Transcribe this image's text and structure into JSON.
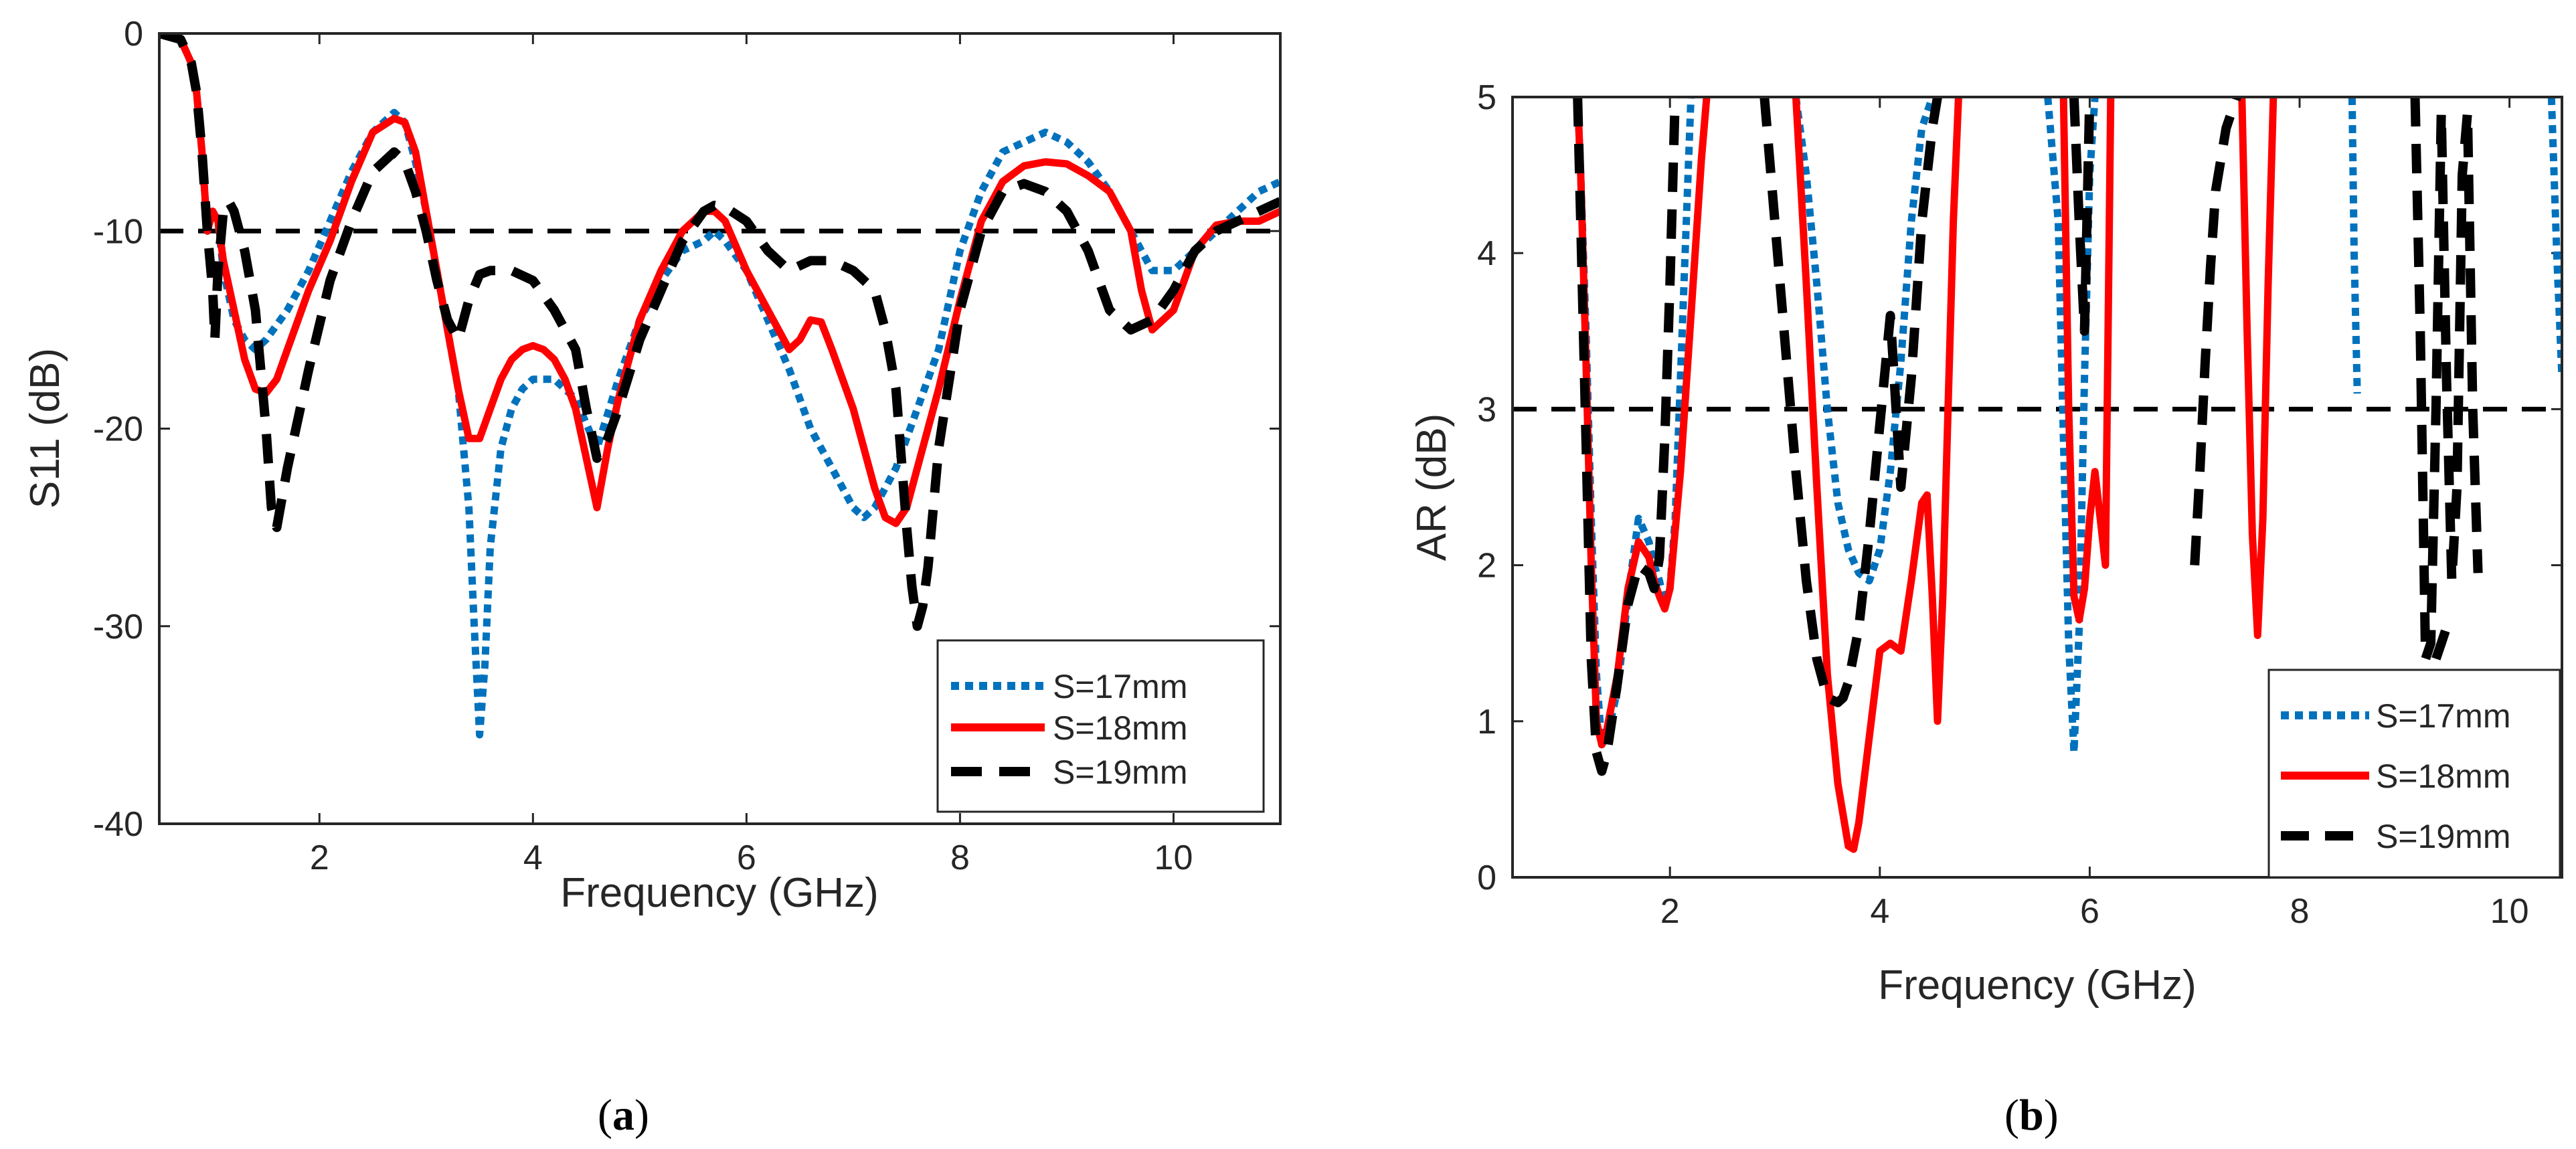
{
  "chart_data": [
    {
      "type": "line",
      "panel_label": "a",
      "xlabel": "Frequency (GHz)",
      "ylabel": "S11 (dB)",
      "xlim": [
        0.5,
        11
      ],
      "ylim": [
        -40,
        0
      ],
      "xticks": [
        2,
        4,
        6,
        8,
        10
      ],
      "xtick_labels": [
        "2",
        "4",
        "6",
        "8",
        "10"
      ],
      "yticks": [
        -40,
        -30,
        -20,
        -10,
        0
      ],
      "ytick_labels": [
        "-40",
        "-30",
        "-20",
        "-10",
        "0"
      ],
      "legend_position": "bottom-right",
      "reference_line": {
        "y": -10,
        "style": "dashed",
        "color": "#000000"
      },
      "series": [
        {
          "name": "S=17mm",
          "color": "#0072BD",
          "style": "dotted",
          "x": [
            0.5,
            0.7,
            0.8,
            0.85,
            0.9,
            0.95,
            1.0,
            1.05,
            1.1,
            1.2,
            1.3,
            1.4,
            1.5,
            1.7,
            1.9,
            2.1,
            2.3,
            2.5,
            2.7,
            2.8,
            2.9,
            3.0,
            3.1,
            3.2,
            3.3,
            3.4,
            3.45,
            3.5,
            3.55,
            3.6,
            3.7,
            3.8,
            3.9,
            4.0,
            4.2,
            4.4,
            4.6,
            4.8,
            5.0,
            5.2,
            5.4,
            5.6,
            5.7,
            5.8,
            6.0,
            6.2,
            6.4,
            6.6,
            6.8,
            7.0,
            7.1,
            7.2,
            7.4,
            7.6,
            7.8,
            8.0,
            8.2,
            8.4,
            8.6,
            8.8,
            9.0,
            9.2,
            9.4,
            9.6,
            9.8,
            10.0,
            10.2,
            10.4,
            10.6,
            10.8,
            11.0
          ],
          "y": [
            0,
            -0.3,
            -1.5,
            -3,
            -6,
            -10,
            -9,
            -9.5,
            -12,
            -14.5,
            -15.5,
            -16,
            -15.5,
            -14,
            -12,
            -9.5,
            -7,
            -5,
            -4,
            -4.5,
            -6.5,
            -9,
            -12,
            -15,
            -18,
            -24,
            -30,
            -35.5,
            -32,
            -26,
            -21,
            -19,
            -18,
            -17.5,
            -17.5,
            -18.5,
            -21,
            -17.5,
            -14.5,
            -12.5,
            -11,
            -10.5,
            -10,
            -10.5,
            -12,
            -14.5,
            -17,
            -20,
            -22,
            -24,
            -24.5,
            -24,
            -22,
            -19,
            -16,
            -11,
            -8,
            -6,
            -5.5,
            -5,
            -5.5,
            -6.5,
            -8,
            -10,
            -12,
            -12,
            -11,
            -10,
            -9,
            -8,
            -7.5
          ]
        },
        {
          "name": "S=18mm",
          "color": "#FF0000",
          "style": "solid",
          "x": [
            0.5,
            0.7,
            0.8,
            0.85,
            0.9,
            0.95,
            1.0,
            1.05,
            1.1,
            1.2,
            1.3,
            1.4,
            1.5,
            1.6,
            1.7,
            1.9,
            2.1,
            2.3,
            2.5,
            2.7,
            2.8,
            2.9,
            3.0,
            3.1,
            3.2,
            3.3,
            3.4,
            3.5,
            3.6,
            3.7,
            3.8,
            3.9,
            4.0,
            4.1,
            4.2,
            4.3,
            4.4,
            4.5,
            4.6,
            4.7,
            4.8,
            5.0,
            5.2,
            5.4,
            5.6,
            5.7,
            5.8,
            6.0,
            6.2,
            6.4,
            6.5,
            6.6,
            6.7,
            6.8,
            7.0,
            7.2,
            7.3,
            7.4,
            7.5,
            7.6,
            7.8,
            8.0,
            8.2,
            8.4,
            8.6,
            8.8,
            9.0,
            9.2,
            9.4,
            9.6,
            9.7,
            9.8,
            10.0,
            10.2,
            10.4,
            10.6,
            10.8,
            11.0
          ],
          "y": [
            0,
            -0.3,
            -1.5,
            -3,
            -6,
            -10,
            -9,
            -9.5,
            -11.5,
            -14,
            -16.5,
            -18,
            -18.2,
            -17.5,
            -16,
            -13,
            -10.5,
            -7.5,
            -5,
            -4.3,
            -4.5,
            -6,
            -9,
            -12,
            -15,
            -18,
            -20.5,
            -20.5,
            -19,
            -17.5,
            -16.5,
            -16,
            -15.8,
            -16,
            -16.5,
            -17.5,
            -19,
            -21.5,
            -24,
            -21,
            -18.5,
            -14.5,
            -12,
            -10,
            -9,
            -9,
            -9.5,
            -12,
            -14,
            -16,
            -15.5,
            -14.5,
            -14.6,
            -16,
            -19,
            -23,
            -24.5,
            -24.8,
            -24,
            -22,
            -18,
            -13.5,
            -9.5,
            -7.5,
            -6.7,
            -6.5,
            -6.6,
            -7.2,
            -8,
            -10,
            -13,
            -15,
            -14,
            -11,
            -9.7,
            -9.5,
            -9.5,
            -9
          ]
        },
        {
          "name": "S=19mm",
          "color": "#000000",
          "style": "dashed",
          "x": [
            0.5,
            0.7,
            0.8,
            0.85,
            0.9,
            0.95,
            1.0,
            1.02,
            1.05,
            1.1,
            1.15,
            1.2,
            1.3,
            1.4,
            1.5,
            1.55,
            1.6,
            1.7,
            1.9,
            2.1,
            2.3,
            2.5,
            2.7,
            2.8,
            2.9,
            3.0,
            3.1,
            3.2,
            3.3,
            3.4,
            3.5,
            3.6,
            3.7,
            3.8,
            4.0,
            4.2,
            4.4,
            4.5,
            4.6,
            4.7,
            4.8,
            5.0,
            5.2,
            5.4,
            5.6,
            5.7,
            5.8,
            6.0,
            6.2,
            6.4,
            6.6,
            6.8,
            7.0,
            7.2,
            7.3,
            7.4,
            7.5,
            7.55,
            7.6,
            7.65,
            7.7,
            7.8,
            8.0,
            8.2,
            8.4,
            8.6,
            8.8,
            9.0,
            9.2,
            9.4,
            9.6,
            9.8,
            10.0,
            10.2,
            10.4,
            10.6,
            10.8,
            11.0
          ],
          "y": [
            0,
            -0.3,
            -1.5,
            -3,
            -6,
            -10,
            -13,
            -15.5,
            -12,
            -9,
            -8.5,
            -9,
            -11,
            -14,
            -20,
            -24,
            -25,
            -22,
            -17,
            -12.5,
            -9.5,
            -7,
            -6,
            -6.5,
            -8,
            -10,
            -12.5,
            -14.5,
            -15.5,
            -13.5,
            -12.2,
            -12,
            -12,
            -12,
            -12.5,
            -14,
            -16,
            -19,
            -21.5,
            -20.5,
            -19,
            -15.5,
            -13,
            -10.5,
            -9,
            -8.7,
            -8.8,
            -9.5,
            -11,
            -12,
            -11.5,
            -11.5,
            -12,
            -13,
            -15,
            -18,
            -25,
            -28,
            -30,
            -29,
            -27,
            -21,
            -14,
            -10,
            -8,
            -7.6,
            -8,
            -9,
            -11,
            -14,
            -15,
            -14.5,
            -13,
            -11,
            -10,
            -9.5,
            -9,
            -8.5
          ]
        }
      ]
    },
    {
      "type": "line",
      "panel_label": "b",
      "xlabel": "Frequency (GHz)",
      "ylabel": "AR (dB)",
      "xlim": [
        0.5,
        10.5
      ],
      "ylim": [
        0,
        5
      ],
      "xticks": [
        2,
        4,
        6,
        8,
        10
      ],
      "xtick_labels": [
        "2",
        "4",
        "6",
        "8",
        "10"
      ],
      "yticks": [
        0,
        1,
        2,
        3,
        4,
        5
      ],
      "ytick_labels": [
        "0",
        "1",
        "2",
        "3",
        "4",
        "5"
      ],
      "legend_position": "bottom-right",
      "reference_line": {
        "y": 3,
        "style": "dashed",
        "color": "#000000"
      },
      "series": [
        {
          "name": "S=17mm",
          "color": "#0072BD",
          "style": "dotted",
          "segments": [
            {
              "x": [
                1.12,
                1.15,
                1.2,
                1.25,
                1.3,
                1.35,
                1.4,
                1.5,
                1.6,
                1.7,
                1.8,
                1.85,
                1.9,
                1.95,
                2.0,
                2.05,
                2.1,
                2.2
              ],
              "y": [
                5,
                4.5,
                3.5,
                2.3,
                1.3,
                0.85,
                0.9,
                1.2,
                1.8,
                2.3,
                2.15,
                2.0,
                1.9,
                1.75,
                1.85,
                2.3,
                3.2,
                5
              ]
            },
            {
              "x": [
                3.2,
                3.3,
                3.4,
                3.5,
                3.6,
                3.7,
                3.8,
                3.9,
                4.0,
                4.1,
                4.2,
                4.3,
                4.4,
                4.5
              ],
              "y": [
                5,
                4.5,
                3.8,
                3.0,
                2.4,
                2.1,
                1.95,
                1.9,
                2.1,
                2.6,
                3.3,
                4.2,
                4.8,
                5
              ]
            },
            {
              "x": [
                5.6,
                5.7,
                5.75,
                5.8,
                5.85,
                5.9,
                5.95,
                6.0,
                6.05
              ],
              "y": [
                5,
                4.2,
                2.8,
                1.5,
                0.8,
                1.6,
                3.2,
                4.5,
                5
              ]
            },
            {
              "x": [
                8.5,
                8.52,
                8.55
              ],
              "y": [
                5,
                4.0,
                3.1
              ]
            },
            {
              "x": [
                10.4,
                10.45,
                10.5
              ],
              "y": [
                5,
                4.0,
                3.2
              ]
            }
          ]
        },
        {
          "name": "S=18mm",
          "color": "#FF0000",
          "style": "solid",
          "segments": [
            {
              "x": [
                1.12,
                1.15,
                1.2,
                1.25,
                1.3,
                1.35,
                1.4,
                1.5,
                1.6,
                1.7,
                1.8,
                1.85,
                1.9,
                1.95,
                2.0,
                2.1,
                2.2,
                2.3,
                2.35
              ],
              "y": [
                5,
                4.5,
                3.3,
                2.0,
                1.0,
                0.85,
                0.95,
                1.3,
                1.85,
                2.15,
                2.05,
                1.9,
                1.8,
                1.72,
                1.85,
                2.6,
                3.6,
                4.6,
                5
              ]
            },
            {
              "x": [
                3.2,
                3.3,
                3.4,
                3.5,
                3.6,
                3.7,
                3.75,
                3.8,
                3.9,
                4.0,
                4.1,
                4.2,
                4.3,
                4.4,
                4.45,
                4.5,
                4.55,
                4.6,
                4.65,
                4.7,
                4.75
              ],
              "y": [
                5,
                3.8,
                2.5,
                1.3,
                0.6,
                0.2,
                0.18,
                0.35,
                0.9,
                1.45,
                1.5,
                1.45,
                1.9,
                2.4,
                2.45,
                1.8,
                1.0,
                1.8,
                3.0,
                4.2,
                5
              ]
            },
            {
              "x": [
                5.75,
                5.8,
                5.85,
                5.9,
                5.95,
                6.0,
                6.05,
                6.1,
                6.15,
                6.2
              ],
              "y": [
                5,
                3.0,
                1.8,
                1.65,
                1.85,
                2.3,
                2.6,
                2.3,
                2.0,
                5
              ]
            },
            {
              "x": [
                7.45,
                7.5,
                7.55,
                7.6,
                7.65,
                7.7,
                7.75
              ],
              "y": [
                5,
                3.5,
                2.2,
                1.55,
                2.3,
                3.8,
                5
              ]
            }
          ]
        },
        {
          "name": "S=19mm",
          "color": "#000000",
          "style": "dashed",
          "segments": [
            {
              "x": [
                1.12,
                1.15,
                1.2,
                1.25,
                1.3,
                1.35,
                1.4,
                1.5,
                1.6,
                1.7,
                1.8,
                1.85,
                1.9,
                1.95,
                2.0,
                2.05
              ],
              "y": [
                5,
                4.2,
                2.8,
                1.4,
                0.8,
                0.68,
                0.8,
                1.25,
                1.75,
                2.0,
                1.95,
                1.85,
                2.05,
                2.8,
                3.8,
                5
              ]
            },
            {
              "x": [
                2.9,
                3.0,
                3.1,
                3.2,
                3.3,
                3.4,
                3.5,
                3.6,
                3.65,
                3.7,
                3.8,
                3.9,
                4.0,
                4.1,
                4.2,
                4.3,
                4.4,
                4.5,
                4.55
              ],
              "y": [
                5,
                4.2,
                3.4,
                2.6,
                1.9,
                1.4,
                1.15,
                1.12,
                1.15,
                1.25,
                1.6,
                2.2,
                2.9,
                3.6,
                2.5,
                3.2,
                4.2,
                4.8,
                5
              ]
            },
            {
              "x": [
                5.85,
                5.9,
                5.95,
                6.0
              ],
              "y": [
                5,
                4.2,
                3.5,
                5
              ]
            },
            {
              "x": [
                7.0,
                7.05,
                7.1,
                7.15,
                7.2,
                7.3,
                7.4
              ],
              "y": [
                2.0,
                2.6,
                3.3,
                3.9,
                4.4,
                4.8,
                5
              ]
            },
            {
              "x": [
                9.1,
                9.15,
                9.2,
                9.25,
                9.3,
                9.35,
                9.4,
                9.45,
                9.5,
                9.55,
                9.6,
                9.65,
                9.7
              ],
              "y": [
                5,
                3.5,
                1.4,
                1.5,
                3.0,
                4.9,
                3.2,
                1.9,
                2.5,
                4.5,
                4.9,
                3.0,
                1.95
              ]
            },
            {
              "x": [
                9.3,
                9.35,
                9.4
              ],
              "y": [
                1.4,
                1.5,
                1.6
              ]
            }
          ]
        }
      ]
    }
  ]
}
